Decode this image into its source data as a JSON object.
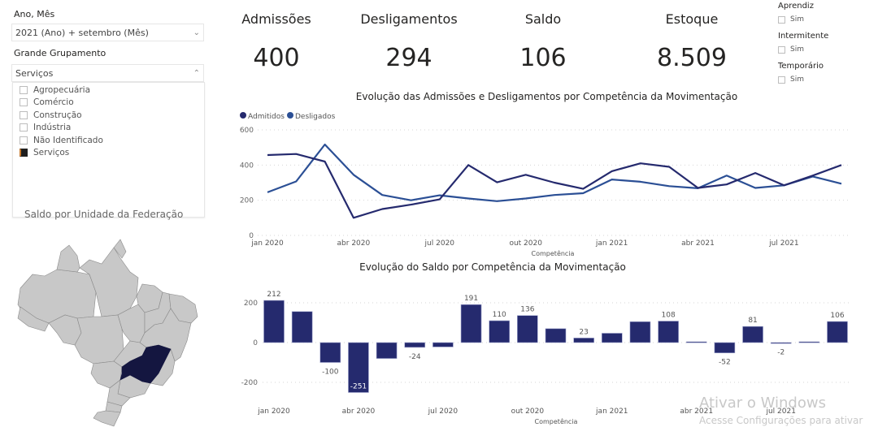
{
  "filters": {
    "period_label": "Ano, Mês",
    "period_value": "2021 (Ano) + setembro (Mês)",
    "group_label": "Grande Grupamento",
    "group_value": "Serviços",
    "group_options": [
      {
        "label": "Agropecuária",
        "checked": false
      },
      {
        "label": "Comércio",
        "checked": false
      },
      {
        "label": "Construção",
        "checked": false
      },
      {
        "label": "Indústria",
        "checked": false
      },
      {
        "label": "Não Identificado",
        "checked": false
      },
      {
        "label": "Serviços",
        "checked": true
      }
    ]
  },
  "kpis": [
    {
      "label": "Admissões",
      "value": "400"
    },
    {
      "label": "Desligamentos",
      "value": "294"
    },
    {
      "label": "Saldo",
      "value": "106"
    },
    {
      "label": "Estoque",
      "value": "8.509"
    }
  ],
  "flags": [
    {
      "title": "Aprendiz",
      "option": "Sim",
      "checked": false
    },
    {
      "title": "Intermitente",
      "option": "Sim",
      "checked": false
    },
    {
      "title": "Temporário",
      "option": "Sim",
      "checked": false
    }
  ],
  "map": {
    "title": "Saldo por Unidade da Federação",
    "highlighted_state": "Minas Gerais",
    "highlight_color": "#141640",
    "base_color": "#c8c8c8"
  },
  "watermark": {
    "line1": "Ativar o Windows",
    "line2": "Acesse Configurações para ativar"
  },
  "chart_data": [
    {
      "type": "line",
      "title": "Evolução das Admissões e Desligamentos por Competência da Movimentação",
      "xlabel": "Competência",
      "ylabel": "",
      "ylim": [
        0,
        600
      ],
      "yticks": [
        0,
        200,
        400,
        600
      ],
      "grid": true,
      "legend": "top-left",
      "x": [
        "jan 2020",
        "fev 2020",
        "mar 2020",
        "abr 2020",
        "mai 2020",
        "jun 2020",
        "jul 2020",
        "ago 2020",
        "set 2020",
        "out 2020",
        "nov 2020",
        "dez 2020",
        "jan 2021",
        "fev 2021",
        "mar 2021",
        "abr 2021",
        "mai 2021",
        "jun 2021",
        "jul 2021",
        "ago 2021",
        "set 2021"
      ],
      "xtick_labels": [
        "jan 2020",
        "abr 2020",
        "jul 2020",
        "out 2020",
        "jan 2021",
        "abr 2021",
        "jul 2021"
      ],
      "series": [
        {
          "name": "Admitidos",
          "color": "#252A6E",
          "values": [
            457,
            463,
            420,
            100,
            150,
            175,
            205,
            400,
            302,
            345,
            300,
            265,
            365,
            410,
            390,
            270,
            290,
            355,
            285,
            340,
            400
          ]
        },
        {
          "name": "Desligados",
          "color": "#2B4F95",
          "values": [
            245,
            307,
            517,
            345,
            230,
            200,
            228,
            210,
            195,
            210,
            230,
            240,
            318,
            305,
            280,
            268,
            340,
            270,
            285,
            335,
            294
          ]
        }
      ]
    },
    {
      "type": "bar",
      "title": "Evolução do Saldo por Competência da Movimentação",
      "xlabel": "Competência",
      "ylabel": "",
      "ylim": [
        -270,
        260
      ],
      "yticks": [
        -200,
        0,
        200
      ],
      "grid": true,
      "color": "#252A6E",
      "categories": [
        "jan 2020",
        "fev 2020",
        "mar 2020",
        "abr 2020",
        "mai 2020",
        "jun 2020",
        "jul 2020",
        "ago 2020",
        "set 2020",
        "out 2020",
        "nov 2020",
        "dez 2020",
        "jan 2021",
        "fev 2021",
        "mar 2021",
        "abr 2021",
        "mai 2021",
        "jun 2021",
        "jul 2021",
        "ago 2021",
        "set 2021"
      ],
      "xtick_labels": [
        "jan 2020",
        "abr 2020",
        "jul 2020",
        "out 2020",
        "jan 2021",
        "abr 2021",
        "jul 2021"
      ],
      "values": [
        212,
        156,
        -100,
        -251,
        -80,
        -24,
        -22,
        191,
        110,
        136,
        70,
        23,
        47,
        105,
        108,
        4,
        -52,
        81,
        -2,
        4,
        106
      ],
      "labeled": [
        true,
        false,
        true,
        true,
        false,
        true,
        false,
        true,
        true,
        true,
        false,
        true,
        false,
        false,
        true,
        false,
        true,
        true,
        true,
        false,
        true
      ]
    }
  ]
}
